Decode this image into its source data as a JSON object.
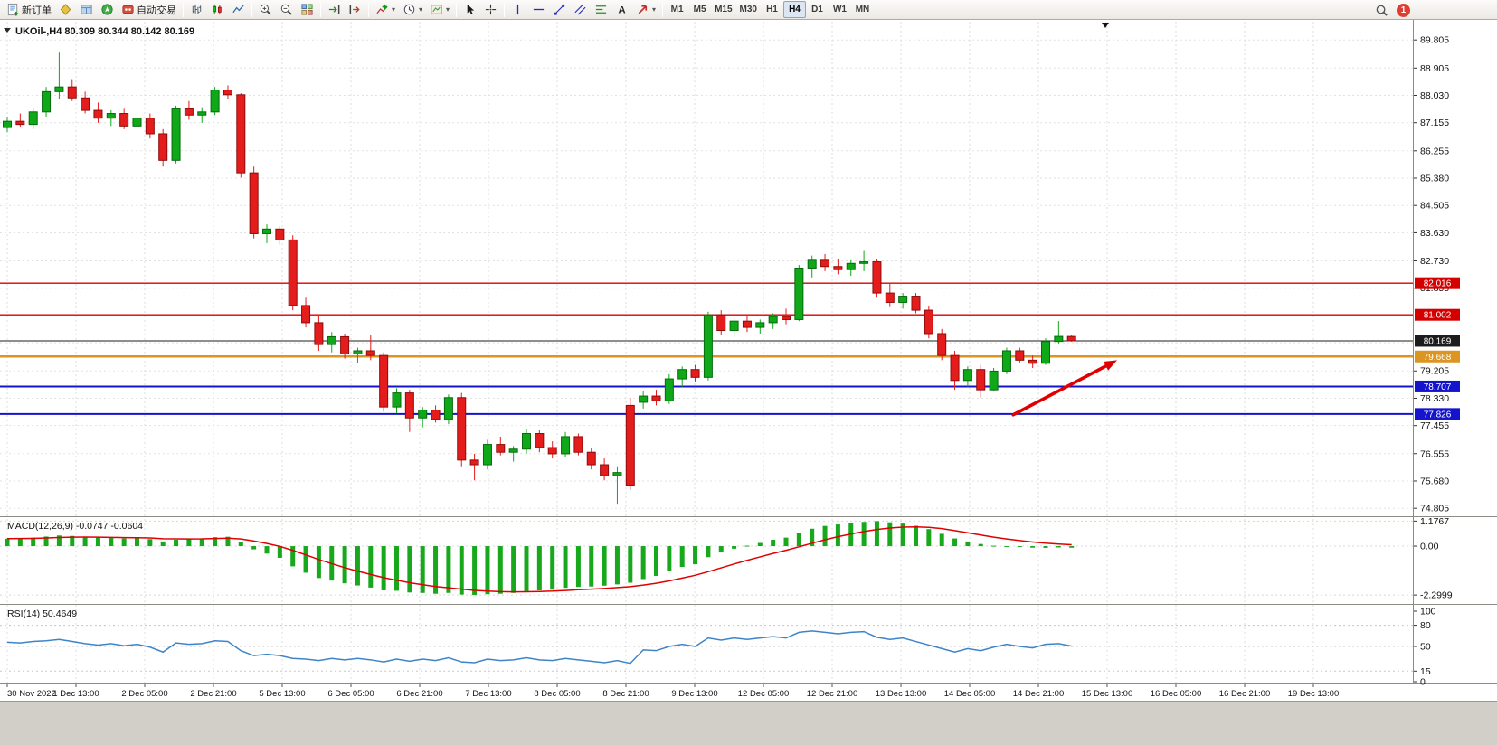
{
  "toolbar": {
    "notification_count": "1",
    "items": [
      {
        "type": "button",
        "name": "new-order-button",
        "label": "新订单",
        "icon": "new-order"
      },
      {
        "type": "button",
        "name": "market-watch-button",
        "icon": "market-watch"
      },
      {
        "type": "button",
        "name": "data-window-button",
        "icon": "data-window"
      },
      {
        "type": "button",
        "name": "navigator-button",
        "icon": "navigator"
      },
      {
        "type": "button",
        "name": "auto-trading-button",
        "label": "自动交易",
        "icon": "auto-trading"
      },
      {
        "type": "separator"
      },
      {
        "type": "button",
        "name": "bar-chart-button",
        "icon": "bars"
      },
      {
        "type": "button",
        "name": "candlestick-chart-button",
        "icon": "candles"
      },
      {
        "type": "button",
        "name": "line-chart-button",
        "icon": "line"
      },
      {
        "type": "separator"
      },
      {
        "type": "button",
        "name": "zoom-in-button",
        "icon": "zoom-in"
      },
      {
        "type": "button",
        "name": "zoom-out-button",
        "icon": "zoom-out"
      },
      {
        "type": "button",
        "name": "tile-windows-button",
        "icon": "tile"
      },
      {
        "type": "separator"
      },
      {
        "type": "button",
        "name": "auto-scroll-button",
        "icon": "auto-scroll"
      },
      {
        "type": "button",
        "name": "chart-shift-button",
        "icon": "chart-shift"
      },
      {
        "type": "separator"
      },
      {
        "type": "button",
        "name": "indicators-button",
        "icon": "indicators",
        "dropdown": true
      },
      {
        "type": "button",
        "name": "periods-button",
        "icon": "clock",
        "dropdown": true
      },
      {
        "type": "button",
        "name": "templates-button",
        "icon": "template",
        "dropdown": true
      },
      {
        "type": "separator"
      },
      {
        "type": "button",
        "name": "cursor-button",
        "icon": "cursor"
      },
      {
        "type": "button",
        "name": "crosshair-button",
        "icon": "crosshair"
      },
      {
        "type": "separator"
      },
      {
        "type": "button",
        "name": "vertical-line-button",
        "icon": "vline"
      },
      {
        "type": "button",
        "name": "horizontal-line-button",
        "icon": "hline"
      },
      {
        "type": "button",
        "name": "trendline-button",
        "icon": "trendline"
      },
      {
        "type": "button",
        "name": "channel-button",
        "icon": "channel"
      },
      {
        "type": "button",
        "name": "fibonacci-button",
        "icon": "fibo"
      },
      {
        "type": "button",
        "name": "text-button",
        "icon": "text"
      },
      {
        "type": "button",
        "name": "arrows-button",
        "icon": "arrows",
        "dropdown": true
      },
      {
        "type": "separator"
      },
      {
        "type": "button",
        "name": "timeframe-m1-button",
        "label": "M1",
        "tf": true
      },
      {
        "type": "button",
        "name": "timeframe-m5-button",
        "label": "M5",
        "tf": true
      },
      {
        "type": "button",
        "name": "timeframe-m15-button",
        "label": "M15",
        "tf": true
      },
      {
        "type": "button",
        "name": "timeframe-m30-button",
        "label": "M30",
        "tf": true
      },
      {
        "type": "button",
        "name": "timeframe-h1-button",
        "label": "H1",
        "tf": true
      },
      {
        "type": "button",
        "name": "timeframe-h4-button",
        "label": "H4",
        "tf": true,
        "active": true
      },
      {
        "type": "button",
        "name": "timeframe-d1-button",
        "label": "D1",
        "tf": true
      },
      {
        "type": "button",
        "name": "timeframe-w1-button",
        "label": "W1",
        "tf": true
      },
      {
        "type": "button",
        "name": "timeframe-mn-button",
        "label": "MN",
        "tf": true
      }
    ]
  },
  "chart_data": [
    {
      "type": "candlestick",
      "title": "UKOil-,H4",
      "header": "UKOil-,H4 80.309 80.344 80.142 80.169",
      "ohlc_current": {
        "open": "80.309",
        "high": "80.344",
        "low": "80.142",
        "close": "80.169"
      },
      "ylim": [
        74.55,
        90.39
      ],
      "up_color": "#0fa818",
      "down_color": "#e51c1c",
      "price_axis": {
        "labels": [
          "89.805",
          "88.905",
          "88.030",
          "87.155",
          "86.255",
          "85.380",
          "84.505",
          "83.630",
          "82.730",
          "81.855",
          "79.205",
          "78.330",
          "77.455",
          "76.555",
          "75.680",
          "74.805"
        ],
        "values": [
          89.805,
          88.905,
          88.03,
          87.155,
          86.255,
          85.38,
          84.505,
          83.63,
          82.73,
          81.855,
          79.205,
          78.33,
          77.455,
          76.555,
          75.68,
          74.805
        ],
        "grid_values": [
          89.805,
          88.905,
          88.03,
          87.155,
          86.255,
          85.38,
          84.505,
          83.63,
          82.73,
          81.855,
          80.98,
          80.105,
          79.205,
          78.33,
          77.455,
          76.555,
          75.68,
          74.805
        ]
      },
      "horizontal_lines": [
        {
          "price": 82.016,
          "label": "82.016",
          "color": "#d40000",
          "width": 1.4
        },
        {
          "price": 81.002,
          "label": "81.002",
          "color": "#d40000",
          "width": 1.4
        },
        {
          "price": 80.169,
          "label": "80.169",
          "color": "#1c1c1c",
          "width": 1,
          "role": "current-price"
        },
        {
          "price": 79.668,
          "label": "79.668",
          "color": "#dd9522",
          "width": 2.4
        },
        {
          "price": 78.707,
          "label": "78.707",
          "color": "#1414cc",
          "width": 2
        },
        {
          "price": 77.826,
          "label": "77.826",
          "color": "#1414cc",
          "width": 2
        }
      ],
      "trend_arrow": {
        "from_bar": 77.5,
        "from_price": 77.8,
        "to_bar": 85.5,
        "to_price": 79.55,
        "color": "#e00000"
      },
      "time_axis_labels": [
        "30 Nov 2022",
        "1 Dec 13:00",
        "2 Dec 05:00",
        "2 Dec 21:00",
        "5 Dec 13:00",
        "6 Dec 05:00",
        "6 Dec 21:00",
        "7 Dec 13:00",
        "8 Dec 05:00",
        "8 Dec 21:00",
        "9 Dec 13:00",
        "12 Dec 05:00",
        "12 Dec 21:00",
        "13 Dec 13:00",
        "14 Dec 05:00",
        "14 Dec 21:00",
        "15 Dec 13:00",
        "16 Dec 05:00",
        "16 Dec 21:00",
        "19 Dec 13:00"
      ],
      "candles": [
        [
          87.0,
          87.35,
          86.85,
          87.2
        ],
        [
          87.2,
          87.45,
          87.0,
          87.1
        ],
        [
          87.1,
          87.6,
          86.95,
          87.5
        ],
        [
          87.5,
          88.3,
          87.35,
          88.15
        ],
        [
          88.15,
          89.4,
          87.9,
          88.3
        ],
        [
          88.3,
          88.55,
          87.85,
          87.95
        ],
        [
          87.95,
          88.15,
          87.45,
          87.55
        ],
        [
          87.55,
          87.8,
          87.15,
          87.3
        ],
        [
          87.3,
          87.55,
          87.05,
          87.45
        ],
        [
          87.45,
          87.6,
          86.95,
          87.05
        ],
        [
          87.05,
          87.4,
          86.9,
          87.3
        ],
        [
          87.3,
          87.45,
          86.65,
          86.8
        ],
        [
          86.8,
          86.95,
          85.75,
          85.95
        ],
        [
          85.95,
          87.7,
          85.85,
          87.6
        ],
        [
          87.6,
          87.85,
          87.25,
          87.4
        ],
        [
          87.4,
          87.65,
          87.15,
          87.5
        ],
        [
          87.5,
          88.3,
          87.4,
          88.2
        ],
        [
          88.2,
          88.35,
          87.9,
          88.05
        ],
        [
          88.05,
          88.1,
          85.4,
          85.55
        ],
        [
          85.55,
          85.75,
          83.45,
          83.6
        ],
        [
          83.6,
          83.9,
          83.3,
          83.75
        ],
        [
          83.75,
          83.85,
          83.25,
          83.4
        ],
        [
          83.4,
          83.55,
          81.15,
          81.3
        ],
        [
          81.3,
          81.55,
          80.6,
          80.75
        ],
        [
          80.75,
          80.95,
          79.85,
          80.05
        ],
        [
          80.05,
          80.45,
          79.8,
          80.3
        ],
        [
          80.3,
          80.4,
          79.6,
          79.75
        ],
        [
          79.75,
          79.95,
          79.45,
          79.85
        ],
        [
          79.85,
          80.35,
          79.55,
          79.7
        ],
        [
          79.7,
          79.8,
          77.9,
          78.05
        ],
        [
          78.05,
          78.65,
          77.85,
          78.5
        ],
        [
          78.5,
          78.6,
          77.25,
          77.7
        ],
        [
          77.7,
          78.05,
          77.4,
          77.95
        ],
        [
          77.95,
          78.1,
          77.55,
          77.65
        ],
        [
          77.65,
          78.45,
          77.5,
          78.35
        ],
        [
          78.35,
          78.5,
          76.15,
          76.35
        ],
        [
          76.35,
          76.55,
          75.7,
          76.2
        ],
        [
          76.2,
          77.0,
          76.05,
          76.85
        ],
        [
          76.85,
          77.1,
          76.5,
          76.6
        ],
        [
          76.6,
          76.8,
          76.3,
          76.7
        ],
        [
          76.7,
          77.35,
          76.55,
          77.2
        ],
        [
          77.2,
          77.3,
          76.6,
          76.75
        ],
        [
          76.75,
          76.95,
          76.4,
          76.55
        ],
        [
          76.55,
          77.25,
          76.45,
          77.1
        ],
        [
          77.1,
          77.2,
          76.5,
          76.6
        ],
        [
          76.6,
          76.75,
          76.05,
          76.2
        ],
        [
          76.2,
          76.4,
          75.7,
          75.85
        ],
        [
          75.85,
          76.15,
          74.95,
          75.95
        ],
        [
          78.1,
          78.35,
          75.4,
          75.55
        ],
        [
          78.2,
          78.55,
          78.0,
          78.4
        ],
        [
          78.4,
          78.6,
          78.1,
          78.25
        ],
        [
          78.25,
          79.1,
          78.15,
          78.95
        ],
        [
          78.95,
          79.35,
          78.7,
          79.25
        ],
        [
          79.25,
          79.4,
          78.85,
          79.0
        ],
        [
          79.0,
          81.1,
          78.9,
          81.0
        ],
        [
          81.0,
          81.15,
          80.35,
          80.5
        ],
        [
          80.5,
          80.9,
          80.3,
          80.8
        ],
        [
          80.8,
          80.95,
          80.45,
          80.6
        ],
        [
          80.6,
          80.85,
          80.4,
          80.75
        ],
        [
          80.75,
          81.05,
          80.55,
          80.95
        ],
        [
          80.95,
          81.2,
          80.7,
          80.85
        ],
        [
          80.85,
          82.6,
          80.8,
          82.5
        ],
        [
          82.5,
          82.9,
          82.2,
          82.75
        ],
        [
          82.75,
          82.95,
          82.4,
          82.55
        ],
        [
          82.55,
          82.8,
          82.3,
          82.45
        ],
        [
          82.45,
          82.75,
          82.25,
          82.65
        ],
        [
          82.65,
          83.05,
          82.4,
          82.7
        ],
        [
          82.7,
          82.8,
          81.55,
          81.7
        ],
        [
          81.7,
          82.0,
          81.25,
          81.4
        ],
        [
          81.4,
          81.7,
          81.2,
          81.6
        ],
        [
          81.6,
          81.7,
          81.05,
          81.15
        ],
        [
          81.15,
          81.3,
          80.25,
          80.4
        ],
        [
          80.4,
          80.55,
          79.55,
          79.7
        ],
        [
          79.7,
          79.85,
          78.6,
          78.9
        ],
        [
          78.9,
          79.35,
          78.7,
          79.25
        ],
        [
          79.25,
          79.4,
          78.35,
          78.6
        ],
        [
          78.6,
          79.3,
          78.55,
          79.2
        ],
        [
          79.2,
          79.95,
          79.1,
          79.85
        ],
        [
          79.85,
          79.95,
          79.45,
          79.55
        ],
        [
          79.55,
          79.7,
          79.3,
          79.45
        ],
        [
          79.45,
          80.25,
          79.4,
          80.15
        ],
        [
          80.15,
          80.8,
          80.05,
          80.31
        ],
        [
          80.309,
          80.344,
          80.142,
          80.169
        ]
      ]
    },
    {
      "type": "bar",
      "subtype": "macd-histogram",
      "label": "MACD(12,26,9) -0.0747 -0.0604",
      "axis_labels": [
        "1.1767",
        "0.00",
        "-2.2999"
      ],
      "axis_values": [
        1.1767,
        0,
        -2.2999
      ],
      "ylim": [
        -2.72,
        1.32
      ],
      "histogram_color": "#18a81c",
      "signal_color": "#e00000",
      "values": [
        0.35,
        0.38,
        0.4,
        0.45,
        0.5,
        0.48,
        0.44,
        0.4,
        0.38,
        0.36,
        0.37,
        0.33,
        0.22,
        0.3,
        0.33,
        0.35,
        0.42,
        0.44,
        0.2,
        -0.15,
        -0.35,
        -0.55,
        -0.95,
        -1.25,
        -1.5,
        -1.62,
        -1.75,
        -1.85,
        -1.95,
        -2.08,
        -2.1,
        -2.18,
        -2.2,
        -2.24,
        -2.2,
        -2.28,
        -2.2999,
        -2.26,
        -2.24,
        -2.2,
        -2.12,
        -2.08,
        -2.05,
        -1.96,
        -1.92,
        -1.9,
        -1.86,
        -1.8,
        -1.72,
        -1.55,
        -1.4,
        -1.18,
        -0.98,
        -0.85,
        -0.52,
        -0.3,
        -0.12,
        0.02,
        0.15,
        0.3,
        0.4,
        0.62,
        0.82,
        0.95,
        1.02,
        1.08,
        1.14,
        1.1767,
        1.12,
        1.06,
        0.96,
        0.8,
        0.58,
        0.36,
        0.22,
        0.1,
        0.02,
        -0.01,
        -0.04,
        -0.07,
        -0.08,
        -0.06,
        -0.0747
      ]
    },
    {
      "type": "line",
      "subtype": "rsi",
      "label": "RSI(14) 50.4649",
      "axis_labels": [
        "100",
        "80",
        "50",
        "15",
        "0"
      ],
      "axis_values": [
        100,
        80,
        50,
        15,
        0
      ],
      "level_lines": [
        80,
        50,
        15
      ],
      "ylim": [
        0,
        100
      ],
      "line_color": "#3d85c8",
      "values": [
        56,
        55,
        57,
        58,
        60,
        57,
        54,
        52,
        54,
        51,
        53,
        49,
        42,
        55,
        53,
        54,
        58,
        57,
        44,
        37,
        39,
        37,
        33,
        32,
        30,
        33,
        31,
        33,
        31,
        28,
        32,
        29,
        32,
        30,
        34,
        28,
        27,
        32,
        30,
        31,
        34,
        31,
        30,
        33,
        31,
        29,
        27,
        30,
        26,
        45,
        44,
        50,
        53,
        50,
        62,
        59,
        62,
        60,
        62,
        64,
        62,
        70,
        72,
        70,
        68,
        70,
        71,
        63,
        60,
        62,
        57,
        52,
        47,
        42,
        47,
        44,
        49,
        53,
        50,
        48,
        53,
        54,
        50.4649
      ]
    }
  ]
}
